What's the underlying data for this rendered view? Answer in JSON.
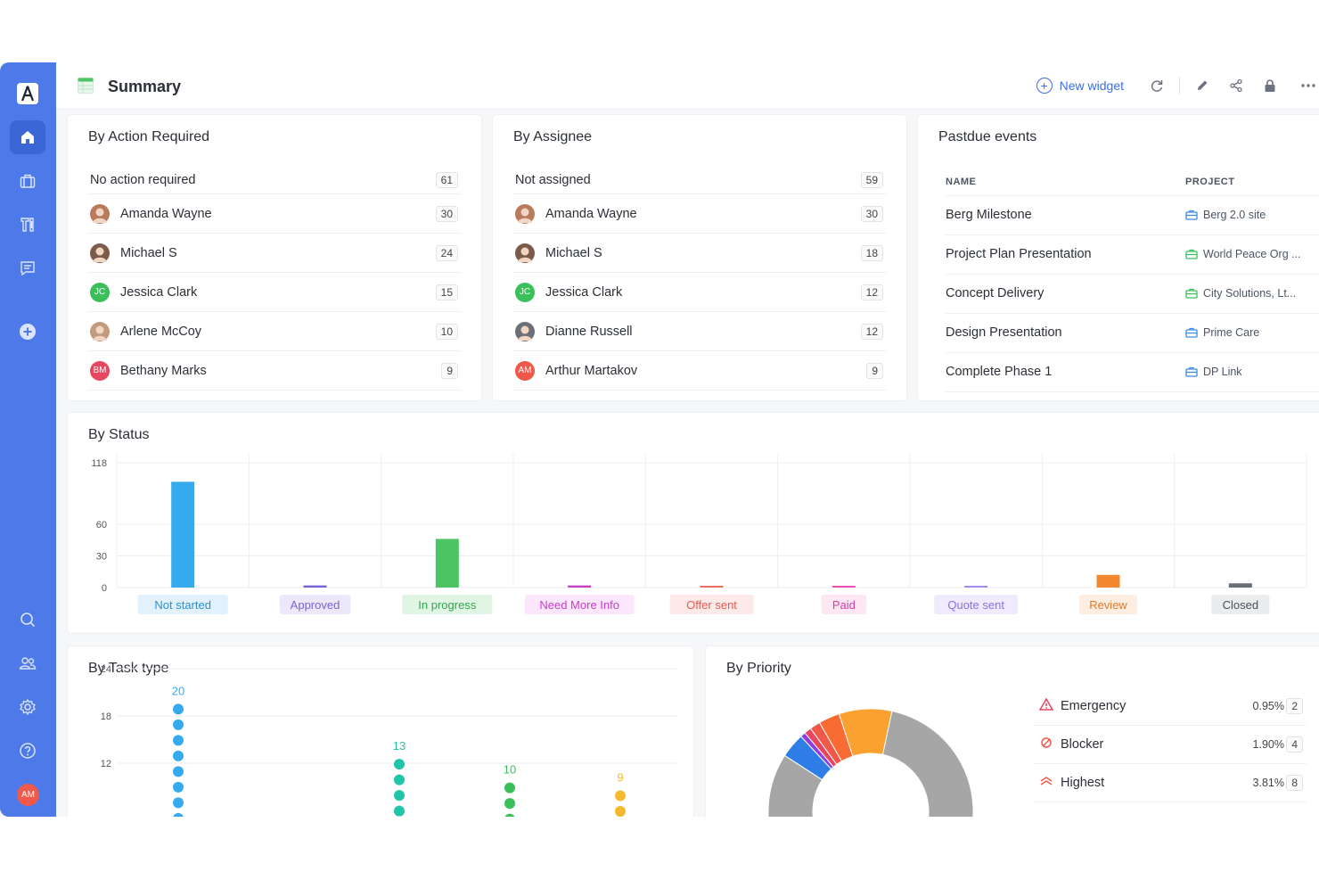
{
  "page": {
    "title": "Summary"
  },
  "toolbar": {
    "new_widget_label": "New widget"
  },
  "sidebar": {
    "logo": "A",
    "icons": [
      "home-icon",
      "briefcase-icon",
      "tools-icon",
      "chat-icon",
      "add-icon",
      "search-icon",
      "users-icon",
      "settings-icon",
      "help-icon"
    ],
    "user_initials": "AM"
  },
  "by_action": {
    "title": "By Action Required",
    "rows": [
      {
        "name": "No action required",
        "count": "61",
        "avatar": ""
      },
      {
        "name": "Amanda Wayne",
        "count": "30",
        "avatar": "photo",
        "color": "#b97a5e"
      },
      {
        "name": "Michael S",
        "count": "24",
        "avatar": "photo",
        "color": "#7b5b4a"
      },
      {
        "name": "Jessica Clark",
        "count": "15",
        "avatar": "JC",
        "color": "#3bbf5a"
      },
      {
        "name": "Arlene McCoy",
        "count": "10",
        "avatar": "photo",
        "color": "#c49a7e"
      },
      {
        "name": "Bethany Marks",
        "count": "9",
        "avatar": "BM",
        "color": "#e8455f"
      }
    ]
  },
  "by_assignee": {
    "title": "By Assignee",
    "rows": [
      {
        "name": "Not assigned",
        "count": "59",
        "avatar": ""
      },
      {
        "name": "Amanda Wayne",
        "count": "30",
        "avatar": "photo",
        "color": "#b97a5e"
      },
      {
        "name": "Michael S",
        "count": "18",
        "avatar": "photo",
        "color": "#7b5b4a"
      },
      {
        "name": "Jessica Clark",
        "count": "12",
        "avatar": "JC",
        "color": "#3bbf5a"
      },
      {
        "name": "Dianne Russell",
        "count": "12",
        "avatar": "photo",
        "color": "#6b6f78"
      },
      {
        "name": "Arthur Martakov",
        "count": "9",
        "avatar": "AM",
        "color": "#f0584a"
      }
    ]
  },
  "pastdue": {
    "title": "Pastdue events",
    "col_name": "NAME",
    "col_project": "PROJECT",
    "rows": [
      {
        "name": "Berg Milestone",
        "project": "Berg 2.0 site",
        "color": "#3b8be6"
      },
      {
        "name": "Project Plan Presentation",
        "project": "World Peace Org ...",
        "color": "#3bbf5a"
      },
      {
        "name": "Concept Delivery",
        "project": "City Solutions, Lt...",
        "color": "#3bbf5a"
      },
      {
        "name": "Design Presentation",
        "project": "Prime Care",
        "color": "#3b8be6"
      },
      {
        "name": "Complete Phase 1",
        "project": "DP Link",
        "color": "#3b8be6"
      }
    ]
  },
  "by_status": {
    "title": "By Status"
  },
  "by_task_type": {
    "title": "By Task type"
  },
  "by_priority": {
    "title": "By Priority",
    "items": [
      {
        "name": "Emergency",
        "pct": "0.95%",
        "count": "2",
        "color": "#e8455f",
        "icon": "warning-icon"
      },
      {
        "name": "Blocker",
        "pct": "1.90%",
        "count": "4",
        "color": "#f0584a",
        "icon": "blocked-icon"
      },
      {
        "name": "Highest",
        "pct": "3.81%",
        "count": "8",
        "color": "#f0584a",
        "icon": "chevrons-up-icon"
      }
    ]
  },
  "chart_data": [
    {
      "type": "bar",
      "title": "By Status",
      "categories": [
        "Not started",
        "Approved",
        "In progress",
        "Need More Info",
        "Offer sent",
        "Paid",
        "Quote sent",
        "Review",
        "Closed"
      ],
      "values": [
        100,
        2,
        46,
        2,
        1,
        1,
        1,
        12,
        4
      ],
      "colors": [
        "#36aaee",
        "#7b61d6",
        "#4cc464",
        "#c540c9",
        "#f06b5f",
        "#e84fb3",
        "#a38bf0",
        "#f5872e",
        "#6b7078"
      ],
      "label_bg": [
        "#e1f2fc",
        "#ece8fa",
        "#e0f5e4",
        "#fbe6fb",
        "#fde9e7",
        "#fde7f3",
        "#efeafd",
        "#fdeee1",
        "#ebecee"
      ],
      "label_fg": [
        "#2d8fd1",
        "#7b61d6",
        "#36a34f",
        "#c540c9",
        "#e65a4e",
        "#d63ea2",
        "#8a72e0",
        "#e5782a",
        "#4b5059"
      ],
      "yticks": [
        0,
        30,
        60,
        118
      ],
      "ylim": [
        0,
        118
      ]
    },
    {
      "type": "scatter",
      "title": "By Task type",
      "x": [
        1,
        3,
        4,
        5
      ],
      "values": [
        20,
        13,
        10,
        9
      ],
      "colors": [
        "#36aaee",
        "#20c4a8",
        "#3bbf5a",
        "#f5b92e"
      ],
      "yticks": [
        12,
        18,
        24
      ],
      "ylim": [
        6,
        24
      ]
    },
    {
      "type": "pie",
      "title": "By Priority",
      "slices": [
        {
          "name": "Emergency",
          "value": 0.95,
          "color": "#e8455f"
        },
        {
          "name": "Blocker",
          "value": 1.9,
          "color": "#f0584a"
        },
        {
          "name": "Highest",
          "value": 3.81,
          "color": "#fa6b34"
        }
      ]
    }
  ]
}
